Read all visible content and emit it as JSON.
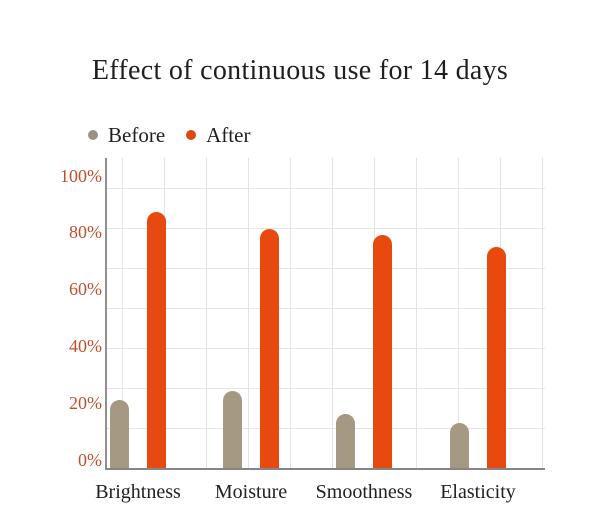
{
  "title": "Effect of continuous use for 14 days",
  "legend": {
    "items": [
      {
        "label": "Before",
        "color": "#9b9186"
      },
      {
        "label": "After",
        "color": "#dc480e"
      }
    ]
  },
  "chart_data": {
    "type": "bar",
    "title": "Effect of continuous use for 14 days",
    "categories": [
      "Brightness",
      "Moisture",
      "Smoothness",
      "Elasticity"
    ],
    "series": [
      {
        "name": "Before",
        "color": "#a69983",
        "values": [
          18,
          21,
          13,
          10
        ]
      },
      {
        "name": "After",
        "color": "#e8490e",
        "values": [
          84,
          78,
          76,
          72
        ]
      }
    ],
    "unit": "%",
    "ylim": [
      0,
      100
    ],
    "yticks": [
      {
        "value": 0,
        "label": "0%"
      },
      {
        "value": 20,
        "label": "20%"
      },
      {
        "value": 40,
        "label": "40%"
      },
      {
        "value": 60,
        "label": "60%"
      },
      {
        "value": 80,
        "label": "80%"
      },
      {
        "value": 100,
        "label": "100%"
      }
    ],
    "grid": true,
    "legend_position": "top-left",
    "colors": {
      "tick_label": "#bf502d",
      "grid_line": "#e3e3e3",
      "axis_line": "#8c8c8c",
      "text": "#212121"
    }
  }
}
